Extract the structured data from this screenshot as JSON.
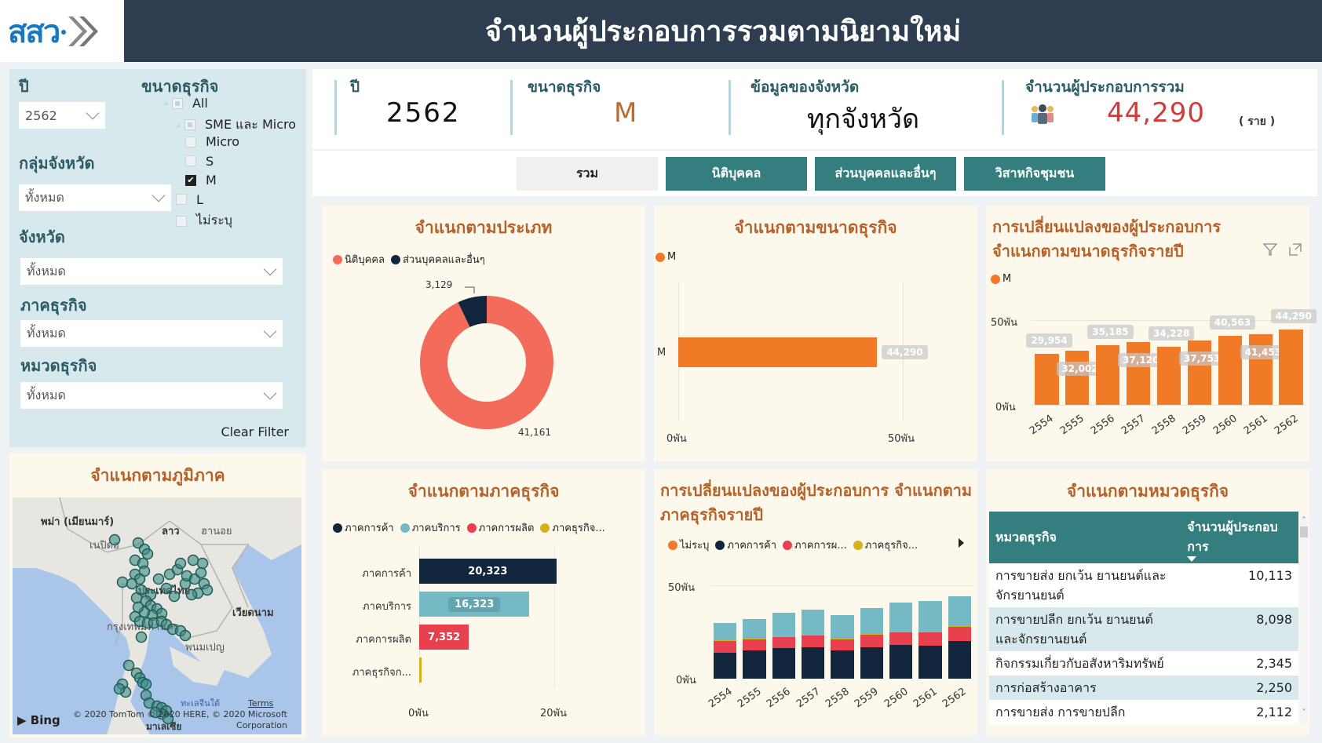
{
  "header": {
    "logo_text": "สสว",
    "title": "จำนวนผู้ประกอบการรวมตามนิยามใหม่"
  },
  "filters": {
    "year": {
      "label": "ปี",
      "value": "2562"
    },
    "province_group": {
      "label": "กลุ่มจังหวัด",
      "value": "ทั้งหมด"
    },
    "province": {
      "label": "จังหวัด",
      "value": "ทั้งหมด"
    },
    "sector": {
      "label": "ภาคธุรกิจ",
      "value": "ทั้งหมด"
    },
    "category": {
      "label": "หมวดธุรกิจ",
      "value": "ทั้งหมด"
    },
    "business_size": {
      "label": "ขนาดธุรกิจ",
      "items": [
        {
          "label": "All",
          "state": "partial",
          "level": 0
        },
        {
          "label": "SME และ Micro",
          "state": "partial",
          "level": 1
        },
        {
          "label": "Micro",
          "state": "unchecked",
          "level": 2
        },
        {
          "label": "S",
          "state": "unchecked",
          "level": 2
        },
        {
          "label": "M",
          "state": "checked",
          "level": 2
        },
        {
          "label": "L",
          "state": "unchecked",
          "level": 1
        },
        {
          "label": "ไม่ระบุ",
          "state": "unchecked",
          "level": 1
        }
      ]
    },
    "clear_label": "Clear Filter"
  },
  "map": {
    "title": "จำแนกตามภูมิภาค",
    "labels": [
      "พม่า (เมียนมาร์)",
      "ลาว",
      "ฮานอย",
      "เนปิดอ",
      "ประเทศไทย",
      "เวียดนาม",
      "กรุงเทพมหานคร",
      "พนมเปญ",
      "ทะเลจีนใต้",
      "มาเลเซีย"
    ],
    "attribution": "© 2020 TomTom © 2020 HERE, © 2020 Microsoft Corporation",
    "terms": "Terms",
    "provider": "Bing"
  },
  "kpi": {
    "year_label": "ปี",
    "year_value": "2562",
    "size_label": "ขนาดธุรกิจ",
    "size_value": "M",
    "province_label": "ข้อมูลของจังหวัด",
    "province_value": "ทุกจังหวัด",
    "total_label": "จำนวนผู้ประกอบการรวม",
    "total_value": "44,290",
    "total_unit": "( ราย )",
    "accent_color": "#d33b3b"
  },
  "tabs": [
    {
      "label": "รวม",
      "active": true
    },
    {
      "label": "นิติบุคคล",
      "active": false
    },
    {
      "label": "ส่วนบุคคลและอื่นๆ",
      "active": false
    },
    {
      "label": "วิสาหกิจชุมชน",
      "active": false
    }
  ],
  "table": {
    "title": "จำแนกตามหมวดธุรกิจ",
    "columns": [
      "หมวดธุรกิจ",
      "จำนวนผู้ประกอบการ"
    ],
    "rows": [
      {
        "name": "การขายส่ง ยกเว้น ยานยนต์และจักรยานยนต์",
        "value": "10,113"
      },
      {
        "name": "การขายปลีก ยกเว้น ยานยนต์และจักรยานยนต์",
        "value": "8,098"
      },
      {
        "name": "กิจกรรมเกี่ยวกับอสังหาริมทรัพย์",
        "value": "2,345"
      },
      {
        "name": "การก่อสร้างอาคาร",
        "value": "2,250"
      },
      {
        "name": "การขายส่ง การขายปลีก",
        "value": "2,112"
      }
    ]
  },
  "chart_data": [
    {
      "id": "by_type",
      "type": "pie",
      "title": "จำแนกตามประเภท",
      "categories": [
        "นิติบุคคล",
        "ส่วนบุคคลและอื่นๆ"
      ],
      "values": [
        41161,
        3129
      ],
      "value_labels": [
        "41,161",
        "3,129"
      ],
      "colors": [
        "#f26b5b",
        "#11263c"
      ],
      "donut": true,
      "legend_position": "top-left"
    },
    {
      "id": "by_size",
      "type": "bar",
      "orientation": "horizontal",
      "title": "จำแนกตามขนาดธุรกิจ",
      "categories": [
        "M"
      ],
      "values": [
        44290
      ],
      "value_labels": [
        "44,290"
      ],
      "colors": [
        "#f07a25"
      ],
      "legend": [
        "M"
      ],
      "xlim": [
        0,
        50000
      ],
      "xticks": [
        "0พัน",
        "50พัน"
      ]
    },
    {
      "id": "size_yearly",
      "type": "bar",
      "title": "การเปลี่ยนแปลงของผู้ประกอบการ จำแนกตามขนาดธุรกิจรายปี",
      "categories": [
        "2554",
        "2555",
        "2556",
        "2557",
        "2558",
        "2559",
        "2560",
        "2561",
        "2562"
      ],
      "series": [
        {
          "name": "M",
          "values": [
            29954,
            32002,
            35185,
            37120,
            34228,
            37753,
            40563,
            41453,
            44290
          ]
        }
      ],
      "value_labels": [
        "29,954",
        "32,002",
        "35,185",
        "37,120",
        "34,228",
        "37,753",
        "40,563",
        "41,453",
        "44,290"
      ],
      "colors": [
        "#f07a25"
      ],
      "ylim": [
        0,
        50000
      ],
      "yticks": [
        "0พัน",
        "50พัน"
      ]
    },
    {
      "id": "by_sector",
      "type": "bar",
      "orientation": "horizontal",
      "title": "จำแนกตามภาคธุรกิจ",
      "legend": [
        "ภาคการค้า",
        "ภาคบริการ",
        "ภาคการผลิต",
        "ภาคธุรกิจ..."
      ],
      "categories": [
        "ภาคการค้า",
        "ภาคบริการ",
        "ภาคการผลิต",
        "ภาคธุรกิจก..."
      ],
      "values": [
        20323,
        16323,
        7352,
        292
      ],
      "value_labels": [
        "20,323",
        "16,323",
        "7,352",
        ""
      ],
      "colors": [
        "#11263c",
        "#74b9c3",
        "#e8404f",
        "#d4b21f"
      ],
      "xlim": [
        0,
        25000
      ],
      "xticks": [
        "0พัน",
        "20พัน"
      ]
    },
    {
      "id": "sector_yearly",
      "type": "bar",
      "stacked": true,
      "title": "การเปลี่ยนแปลงของผู้ประกอบการ จำแนกตามภาคธุรกิจรายปี",
      "legend": [
        "ไม่ระบุ",
        "ภาคการค้า",
        "ภาคการผ...",
        "ภาคธุรกิจ..."
      ],
      "categories": [
        "2554",
        "2555",
        "2556",
        "2557",
        "2558",
        "2559",
        "2560",
        "2561",
        "2562"
      ],
      "series": [
        {
          "name": "ภาคการค้า",
          "color": "#11263c",
          "values": [
            14000,
            15300,
            16300,
            17000,
            15200,
            17000,
            18100,
            17800,
            20323
          ]
        },
        {
          "name": "ภาคการผลิต",
          "color": "#e8404f",
          "values": [
            6200,
            5800,
            6300,
            6400,
            6000,
            6500,
            6900,
            7000,
            7352
          ]
        },
        {
          "name": "ภาคธุรกิจการเกษตร",
          "color": "#d4b21f",
          "values": [
            600,
            300,
            300,
            300,
            300,
            300,
            300,
            300,
            292
          ]
        },
        {
          "name": "ภาคบริการ",
          "color": "#74b9c3",
          "values": [
            9154,
            10602,
            12285,
            13420,
            12728,
            13953,
            15263,
            16353,
            16323
          ]
        },
        {
          "name": "ไม่ระบุ",
          "color": "#f07a25",
          "values": [
            0,
            0,
            0,
            0,
            0,
            0,
            0,
            0,
            0
          ]
        }
      ],
      "ylim": [
        0,
        50000
      ],
      "yticks": [
        "0พัน",
        "50พัน"
      ]
    }
  ]
}
